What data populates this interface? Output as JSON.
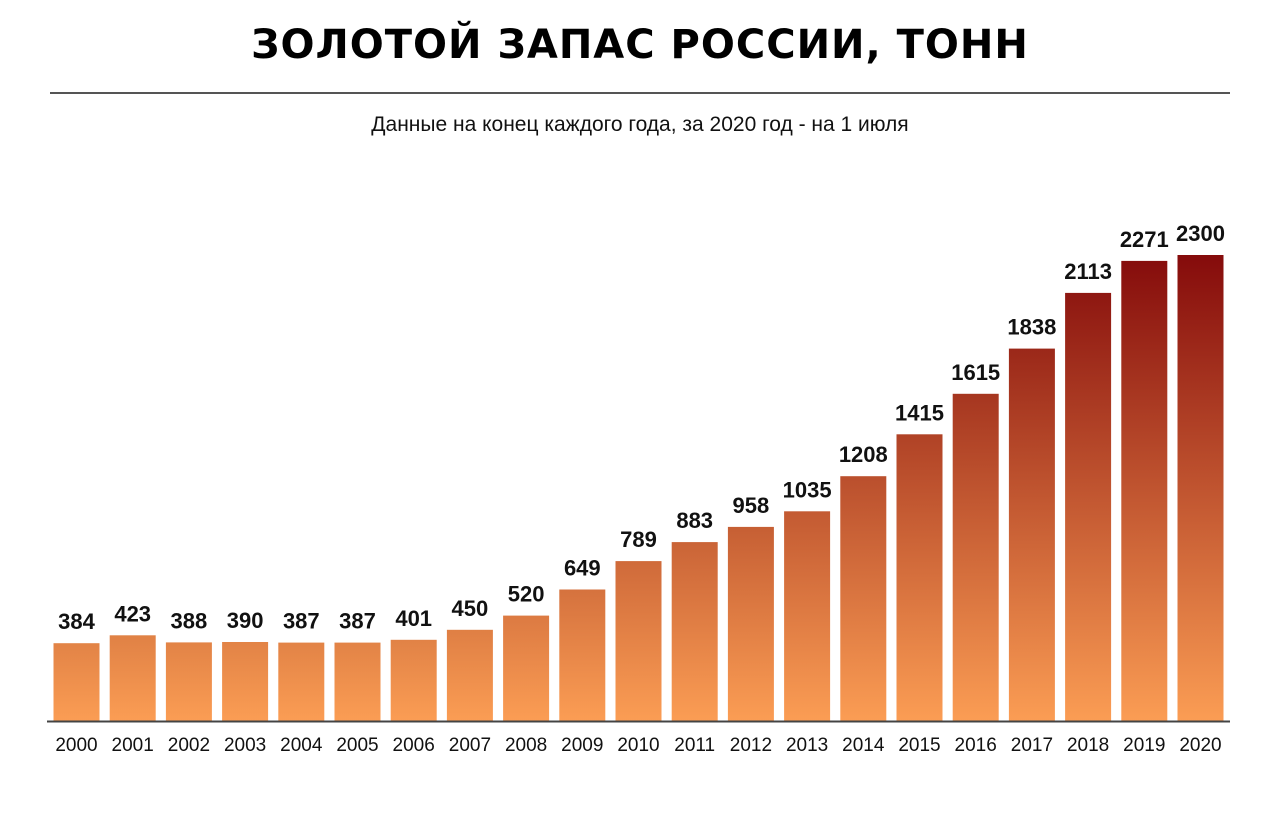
{
  "chart_data": {
    "type": "bar",
    "title": "ЗОЛОТОЙ ЗАПАС РОССИИ, ТОНН",
    "subtitle": "Данные на конец каждого года, за 2020 год - на 1 июля",
    "categories": [
      "2000",
      "2001",
      "2002",
      "2003",
      "2004",
      "2005",
      "2006",
      "2007",
      "2008",
      "2009",
      "2010",
      "2011",
      "2012",
      "2013",
      "2014",
      "2015",
      "2016",
      "2017",
      "2018",
      "2019",
      "2020"
    ],
    "values": [
      384,
      423,
      388,
      390,
      387,
      387,
      401,
      450,
      520,
      649,
      789,
      883,
      958,
      1035,
      1208,
      1415,
      1615,
      1838,
      2113,
      2271,
      2300
    ],
    "xlabel": "",
    "ylabel": "",
    "ylim": [
      0,
      2300
    ],
    "grid": false,
    "legend": "none",
    "data_labels": true,
    "colors": {
      "low": "#f59b52",
      "high": "#850b0b",
      "bar_bottom": "#fb9d54"
    }
  }
}
